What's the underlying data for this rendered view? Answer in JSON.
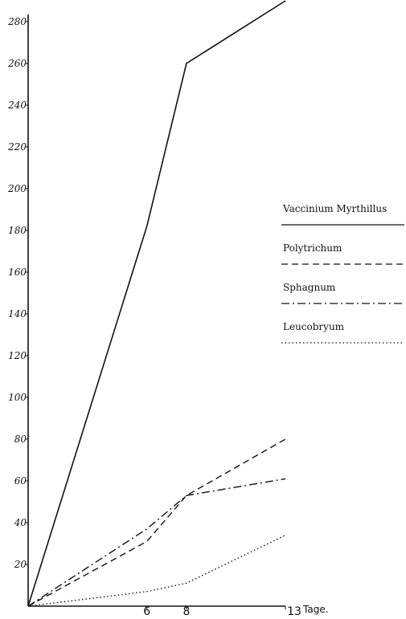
{
  "chart_data": {
    "type": "line",
    "title": "",
    "xlabel": "Tage.",
    "ylabel": "",
    "xlim": [
      0,
      13
    ],
    "ylim": [
      0,
      290
    ],
    "y_ticks": [
      "20",
      "40",
      "60",
      "80",
      "100",
      "120",
      "140",
      "160",
      "180",
      "200",
      "220",
      "240",
      "260",
      "280"
    ],
    "x_ticks": [
      "6",
      "8",
      "13"
    ],
    "x_unit_label": "Tage.",
    "legend_placement": "right",
    "grid": false,
    "series": [
      {
        "name": "Vaccinium Myrthillus",
        "line_style": "solid",
        "x": [
          0,
          6,
          8,
          13
        ],
        "y": [
          0,
          182,
          260,
          290
        ]
      },
      {
        "name": "Polytrichum",
        "line_style": "dashed",
        "x": [
          0,
          6,
          8,
          13
        ],
        "y": [
          0,
          31,
          53,
          80
        ]
      },
      {
        "name": "Sphagnum",
        "line_style": "dash-dot",
        "x": [
          0,
          6,
          8,
          13
        ],
        "y": [
          0,
          37,
          53,
          61
        ]
      },
      {
        "name": "Leucobryum",
        "line_style": "dotted",
        "x": [
          0,
          6,
          8,
          13
        ],
        "y": [
          0,
          7,
          11,
          34
        ]
      }
    ]
  }
}
